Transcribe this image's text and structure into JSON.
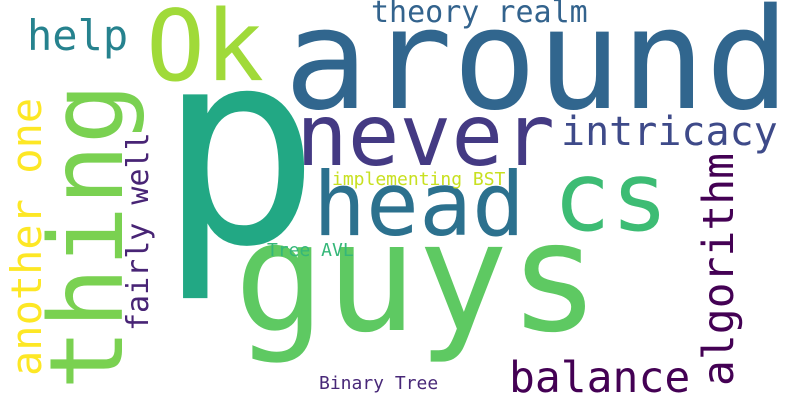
{
  "words": [
    {
      "text": "p",
      "color": "#22a884"
    },
    {
      "text": "around",
      "color": "#31668e"
    },
    {
      "text": "guys",
      "color": "#5ec962"
    },
    {
      "text": "never",
      "color": "#443a83"
    },
    {
      "text": "head",
      "color": "#2c718e"
    },
    {
      "text": "cs",
      "color": "#3dbc74"
    },
    {
      "text": "Ok",
      "color": "#a0da39"
    },
    {
      "text": "thing",
      "color": "#7ad151"
    },
    {
      "text": "help",
      "color": "#26828e"
    },
    {
      "text": "theory realm",
      "color": "#33638d"
    },
    {
      "text": "intricacy",
      "color": "#3e4a89"
    },
    {
      "text": "another one",
      "color": "#fde725"
    },
    {
      "text": "fairly well",
      "color": "#482475"
    },
    {
      "text": "algorithm",
      "color": "#440154"
    },
    {
      "text": "balance",
      "color": "#440154"
    },
    {
      "text": "implementing BST",
      "color": "#c8e020"
    },
    {
      "text": "Tree AVL",
      "color": "#35b779"
    },
    {
      "text": "Binary Tree",
      "color": "#482878"
    }
  ]
}
